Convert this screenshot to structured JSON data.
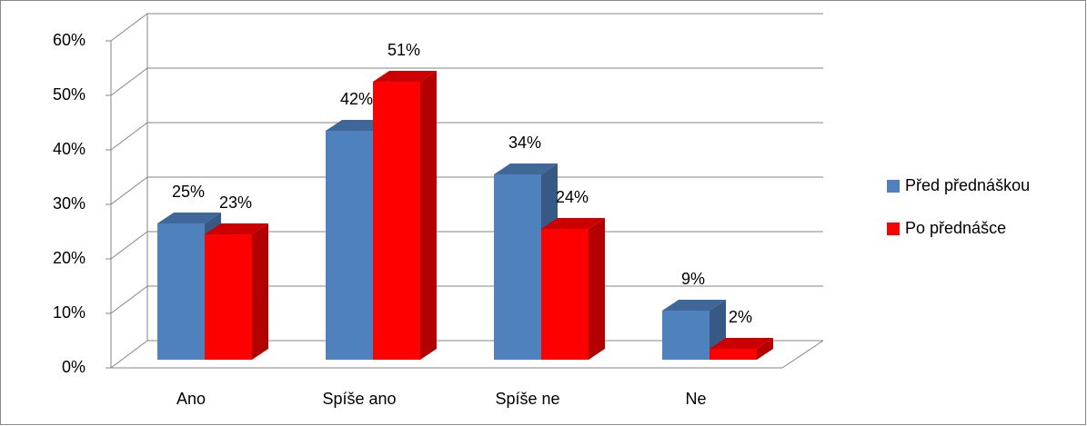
{
  "chart_data": {
    "type": "bar3d",
    "categories": [
      "Ano",
      "Spíše ano",
      "Spíše ne",
      "Ne"
    ],
    "series": [
      {
        "name": "Před přednáškou",
        "color": "#4f81bd",
        "values": [
          25,
          42,
          34,
          9
        ],
        "value_labels": [
          "25%",
          "42%",
          "34%",
          "9%"
        ]
      },
      {
        "name": "Po přednášce",
        "color": "#ff0000",
        "values": [
          23,
          51,
          24,
          2
        ],
        "value_labels": [
          "23%",
          "51%",
          "24%",
          "2%"
        ]
      }
    ],
    "ylim": [
      0,
      60
    ],
    "yticks": [
      {
        "value": 0,
        "label": "0%"
      },
      {
        "value": 10,
        "label": "10%"
      },
      {
        "value": 20,
        "label": "20%"
      },
      {
        "value": 30,
        "label": "30%"
      },
      {
        "value": 40,
        "label": "40%"
      },
      {
        "value": 50,
        "label": "50%"
      },
      {
        "value": 60,
        "label": "60%"
      }
    ],
    "grid": true,
    "legend": "right"
  }
}
